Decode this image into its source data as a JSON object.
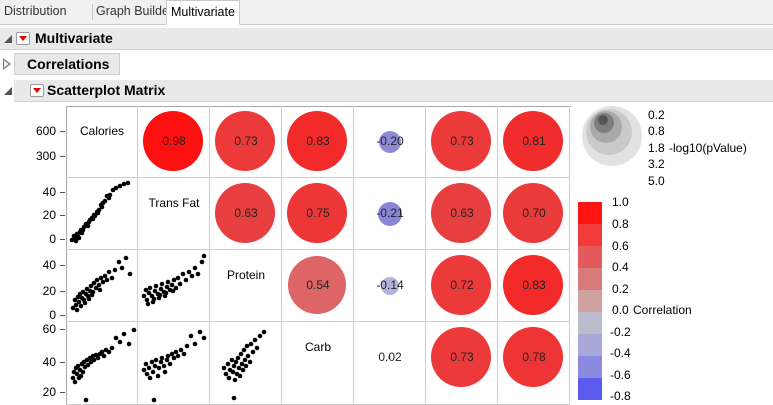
{
  "tabs": [
    {
      "label": "Distribution",
      "active": false
    },
    {
      "label": "Graph Builder",
      "active": false
    },
    {
      "label": "Multivariate",
      "active": true
    }
  ],
  "outline": {
    "multivariate": "Multivariate",
    "correlations": "Correlations",
    "scatterplot": "Scatterplot Matrix"
  },
  "variables": [
    "Calories",
    "Trans Fat",
    "Protein",
    "Carb"
  ],
  "correlations": {
    "row0": [
      "0.98",
      "0.73",
      "0.83",
      "-0.20",
      "0.73",
      "0.81"
    ],
    "row1": [
      "0.63",
      "0.75",
      "-0.21",
      "0.63",
      "0.70"
    ],
    "row2": [
      "0.54",
      "-0.14",
      "0.72",
      "0.83"
    ],
    "row3": [
      "0.02",
      "0.73",
      "0.78"
    ]
  },
  "y_axis": {
    "row0": [
      "600",
      "300"
    ],
    "row1": [
      "40",
      "20",
      "0"
    ],
    "row2": [
      "40",
      "20",
      "0"
    ],
    "row3": [
      "60",
      "40",
      "20"
    ]
  },
  "pvalue_legend": {
    "values": [
      "0.2",
      "0.8",
      "1.8",
      "3.2",
      "5.0"
    ],
    "label": "-log10(pValue)"
  },
  "correlation_legend": {
    "values": [
      "1.0",
      "0.8",
      "0.6",
      "0.4",
      "0.2",
      "0.0",
      "-0.2",
      "-0.4",
      "-0.6",
      "-0.8"
    ],
    "label": "Correlation"
  },
  "colors": {
    "strong_red": "#ff1010",
    "red": "#ec3a3a",
    "mid_red": "#dd6565",
    "blue": "#8d8ad6",
    "light_blue": "#b2b2dd"
  }
}
